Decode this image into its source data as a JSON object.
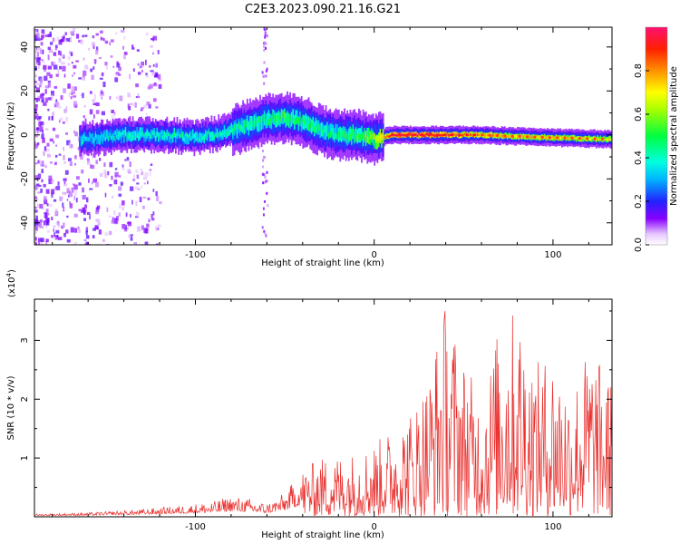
{
  "title": "C2E3.2023.090.21.16.G21",
  "chart_data": [
    {
      "type": "heatmap",
      "xlabel": "Height of straight line (km)",
      "ylabel": "Frequency (Hz)",
      "xlim": [
        -190,
        133
      ],
      "ylim": [
        -50,
        49
      ],
      "xticks": [
        -100,
        0,
        100
      ],
      "yticks": [
        -40,
        -20,
        0,
        20,
        40
      ],
      "colorbar": {
        "label": "Normalized spectral amplitude",
        "range": [
          0,
          1
        ],
        "ticks": [
          0.0,
          0.2,
          0.4,
          0.6,
          0.8
        ],
        "tick_labels": [
          "0.0",
          "0.2",
          "0.4",
          "0.6",
          "0.8"
        ]
      },
      "ridge_centerline": {
        "x": [
          -160,
          -140,
          -120,
          -100,
          -85,
          -72,
          -62,
          -50,
          -40,
          -30,
          -20,
          -10,
          0,
          10,
          30,
          60,
          90,
          133
        ],
        "y": [
          -2,
          0,
          0,
          -1,
          1,
          4,
          7,
          8,
          6,
          2,
          0,
          0,
          -2,
          0,
          0,
          0,
          -1,
          -2
        ],
        "peak_amplitude": [
          0.35,
          0.4,
          0.4,
          0.4,
          0.4,
          0.45,
          0.45,
          0.5,
          0.45,
          0.45,
          0.45,
          0.5,
          0.6,
          0.95,
          0.95,
          0.8,
          0.75,
          0.7
        ]
      }
    },
    {
      "type": "line",
      "xlabel": "Height of straight line (km)",
      "ylabel": "SNR (10 * v/v)",
      "scale_note": "(x10",
      "scale_exp": "4",
      "scale_close": ")",
      "xlim": [
        -190,
        133
      ],
      "ylim": [
        0,
        3.7
      ],
      "xticks": [
        -100,
        0,
        100
      ],
      "yticks": [
        1,
        2,
        3
      ],
      "color": "#e8302e",
      "envelope": {
        "x": [
          -190,
          -160,
          -130,
          -110,
          -90,
          -80,
          -70,
          -60,
          -50,
          -40,
          -30,
          -20,
          -10,
          0,
          10,
          20,
          30,
          40,
          50,
          60,
          70,
          80,
          90,
          100,
          110,
          120,
          133
        ],
        "y": [
          0.04,
          0.06,
          0.12,
          0.18,
          0.25,
          0.35,
          0.3,
          0.22,
          0.4,
          0.8,
          1.0,
          1.05,
          1.1,
          1.25,
          1.5,
          1.8,
          2.4,
          3.7,
          2.7,
          2.0,
          3.3,
          3.6,
          2.6,
          2.8,
          2.2,
          2.9,
          2.3
        ]
      }
    }
  ]
}
